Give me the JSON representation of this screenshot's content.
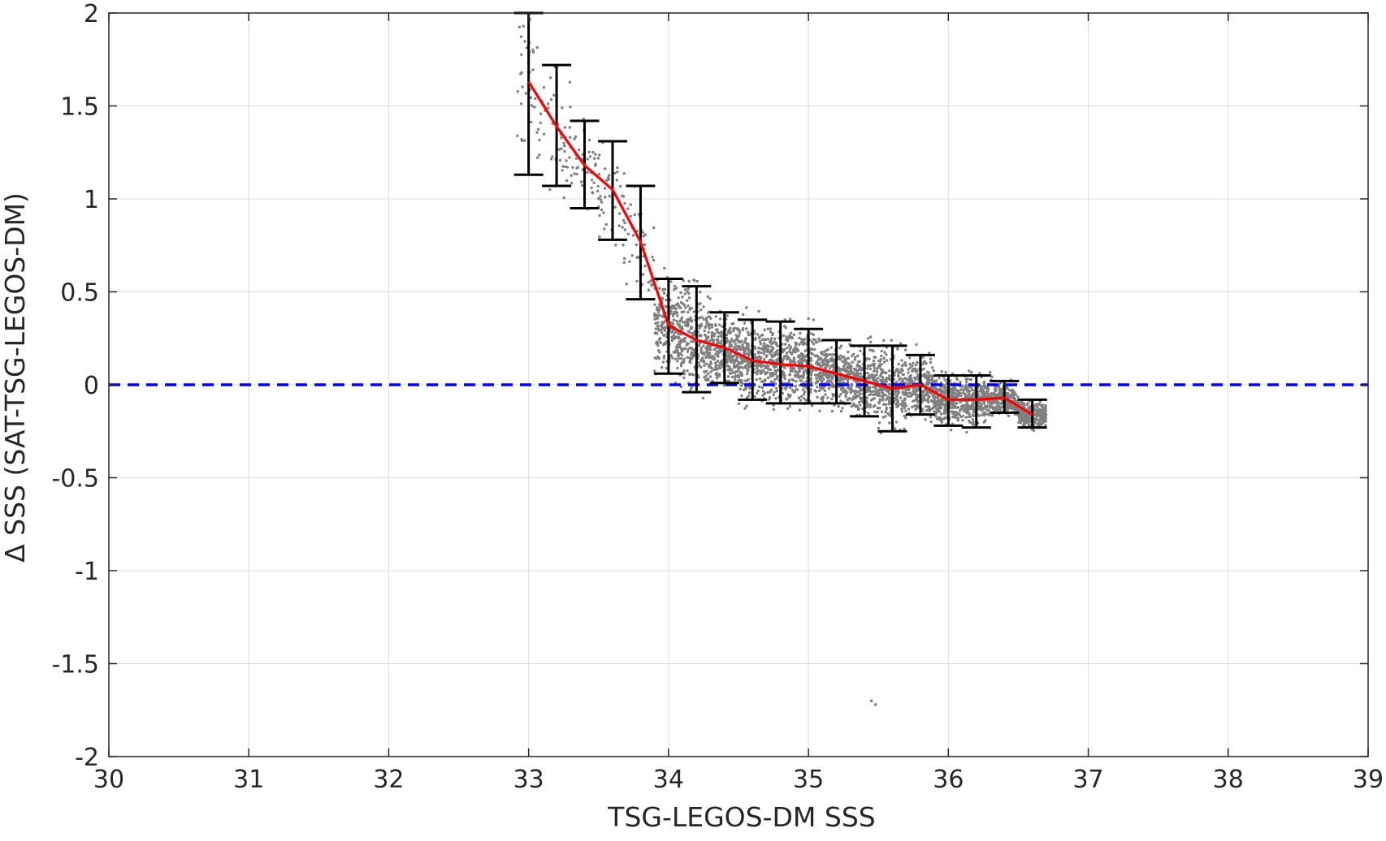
{
  "chart_data": {
    "type": "scatter",
    "xlabel": "TSG-LEGOS-DM SSS",
    "ylabel": "Δ SSS (SAT-TSG-LEGOS-DM)",
    "xlim": [
      30,
      39
    ],
    "ylim": [
      -2,
      2
    ],
    "x_ticks": [
      30,
      31,
      32,
      33,
      34,
      35,
      36,
      37,
      38,
      39
    ],
    "y_ticks": [
      -2,
      -1.5,
      -1,
      -0.5,
      0,
      0.5,
      1,
      1.5,
      2
    ],
    "x_tick_labels": [
      "30",
      "31",
      "32",
      "33",
      "34",
      "35",
      "36",
      "37",
      "38",
      "39"
    ],
    "y_tick_labels": [
      "-2",
      "-1.5",
      "-1",
      "-0.5",
      "0",
      "0.5",
      "1",
      "1.5",
      "2"
    ],
    "grid": true,
    "colors": {
      "scatter": "#808080",
      "mean_line": "#ff0000",
      "error_bars": "#000000",
      "zero_line": "#0000ff",
      "grid": "#dcdcdc",
      "axes": "#262626"
    },
    "reference_line": {
      "y": 0,
      "style": "dashed"
    },
    "bins": {
      "x": [
        33.0,
        33.2,
        33.4,
        33.6,
        33.8,
        34.0,
        34.2,
        34.4,
        34.6,
        34.8,
        35.0,
        35.2,
        35.4,
        35.6,
        35.8,
        36.0,
        36.2,
        36.4,
        36.6
      ],
      "mean": [
        1.63,
        1.39,
        1.18,
        1.05,
        0.77,
        0.32,
        0.24,
        0.2,
        0.13,
        0.11,
        0.1,
        0.06,
        0.02,
        -0.02,
        0.0,
        -0.08,
        -0.08,
        -0.07,
        -0.16
      ],
      "lower": [
        1.13,
        1.07,
        0.95,
        0.78,
        0.46,
        0.06,
        -0.04,
        0.01,
        -0.08,
        -0.1,
        -0.1,
        -0.1,
        -0.17,
        -0.25,
        -0.16,
        -0.22,
        -0.23,
        -0.15,
        -0.23
      ],
      "upper": [
        2.0,
        1.72,
        1.42,
        1.31,
        1.07,
        0.57,
        0.53,
        0.39,
        0.35,
        0.34,
        0.3,
        0.24,
        0.21,
        0.21,
        0.16,
        0.05,
        0.05,
        0.02,
        -0.08
      ]
    },
    "scatter_outliers": [
      {
        "x": 35.45,
        "y": -1.7
      },
      {
        "x": 35.48,
        "y": -1.72
      }
    ]
  }
}
